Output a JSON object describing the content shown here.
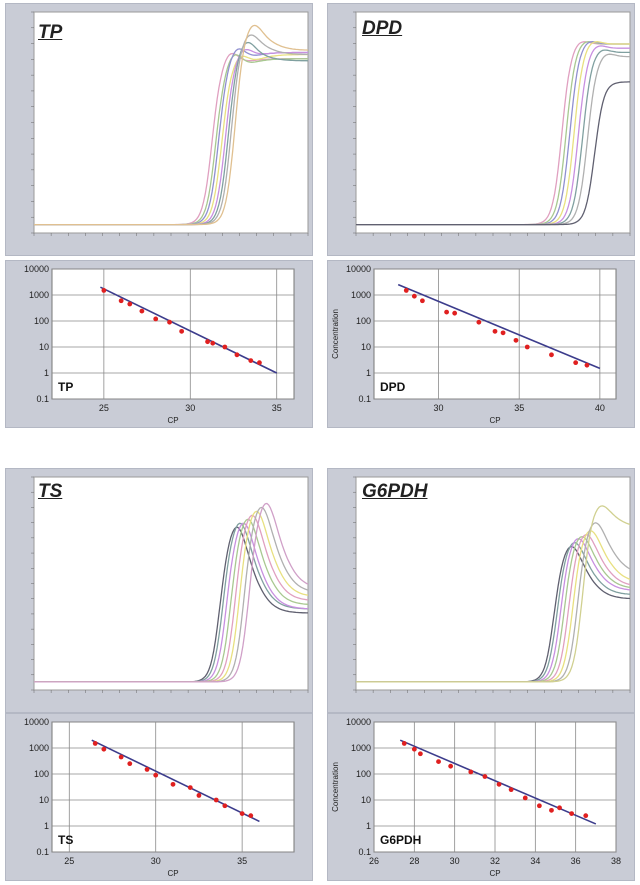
{
  "chart_data": [
    {
      "type": "line",
      "gene": "TP",
      "colors": [
        "#e0a0c0",
        "#a8c890",
        "#9090d0",
        "#e8e080",
        "#c890e0",
        "#80a0a0",
        "#b0b0b0",
        "#e0c090"
      ],
      "curves": [
        {
          "ct": 29.2,
          "plateau": 0.8,
          "peak": 0.06,
          "post": 0.03
        },
        {
          "ct": 29.8,
          "plateau": 0.78,
          "peak": 0.07,
          "post": 0.05
        },
        {
          "ct": 30.3,
          "plateau": 0.82,
          "peak": 0.06,
          "post": 0.04
        },
        {
          "ct": 30.8,
          "plateau": 0.79,
          "peak": 0.05,
          "post": 0.06
        },
        {
          "ct": 31.4,
          "plateau": 0.84,
          "peak": 0.04,
          "post": 0.02
        },
        {
          "ct": 31.9,
          "plateau": 0.88,
          "peak": 0.05,
          "post": -0.06
        },
        {
          "ct": 32.4,
          "plateau": 0.93,
          "peak": 0.04,
          "post": -0.08
        },
        {
          "ct": 33.0,
          "plateau": 0.97,
          "peak": 0.05,
          "post": -0.1
        }
      ],
      "xlim": [
        0,
        45
      ]
    },
    {
      "type": "line",
      "gene": "DPD",
      "colors": [
        "#e0a0c0",
        "#a8c890",
        "#9090d0",
        "#e8e080",
        "#c890e0",
        "#80a0a0",
        "#b0b0b0",
        "#606070"
      ],
      "curves": [
        {
          "ct": 33.8,
          "plateau": 0.9,
          "peak": 0.02,
          "post": 0.0
        },
        {
          "ct": 34.5,
          "plateau": 0.9,
          "peak": 0.02,
          "post": 0.0
        },
        {
          "ct": 35.1,
          "plateau": 0.9,
          "peak": 0.02,
          "post": 0.0
        },
        {
          "ct": 35.8,
          "plateau": 0.9,
          "peak": 0.02,
          "post": 0.0
        },
        {
          "ct": 36.5,
          "plateau": 0.88,
          "peak": 0.02,
          "post": 0.0
        },
        {
          "ct": 37.2,
          "plateau": 0.86,
          "peak": 0.02,
          "post": 0.0
        },
        {
          "ct": 38.0,
          "plateau": 0.84,
          "peak": 0.02,
          "post": 0.0
        },
        {
          "ct": 39.2,
          "plateau": 0.72,
          "peak": 0.0,
          "post": 0.0
        }
      ],
      "xlim": [
        0,
        45
      ]
    },
    {
      "type": "line",
      "gene": "TS",
      "colors": [
        "#606070",
        "#80a0a0",
        "#c890e0",
        "#a8c890",
        "#e0a0c0",
        "#e8e080",
        "#b0b0b0",
        "#d0a0c8"
      ],
      "curves": [
        {
          "ct": 30.5,
          "plateau": 0.78,
          "peak": 0.1,
          "post": -0.4
        },
        {
          "ct": 31.0,
          "plateau": 0.8,
          "peak": 0.1,
          "post": -0.4
        },
        {
          "ct": 31.6,
          "plateau": 0.8,
          "peak": 0.1,
          "post": -0.4
        },
        {
          "ct": 32.3,
          "plateau": 0.82,
          "peak": 0.1,
          "post": -0.4
        },
        {
          "ct": 33.0,
          "plateau": 0.84,
          "peak": 0.1,
          "post": -0.4
        },
        {
          "ct": 33.7,
          "plateau": 0.86,
          "peak": 0.1,
          "post": -0.4
        },
        {
          "ct": 34.5,
          "plateau": 0.88,
          "peak": 0.1,
          "post": -0.4
        },
        {
          "ct": 35.3,
          "plateau": 0.9,
          "peak": 0.1,
          "post": -0.4
        }
      ],
      "xlim": [
        0,
        45
      ]
    },
    {
      "type": "line",
      "gene": "G6PDH",
      "colors": [
        "#606070",
        "#80a0a0",
        "#c890e0",
        "#a8c890",
        "#e0a0c0",
        "#e8e080",
        "#b0b0b0",
        "#d0d090"
      ],
      "curves": [
        {
          "ct": 32.5,
          "plateau": 0.7,
          "peak": 0.06,
          "post": -0.25
        },
        {
          "ct": 33.0,
          "plateau": 0.72,
          "peak": 0.06,
          "post": -0.25
        },
        {
          "ct": 33.6,
          "plateau": 0.74,
          "peak": 0.06,
          "post": -0.25
        },
        {
          "ct": 34.2,
          "plateau": 0.75,
          "peak": 0.06,
          "post": -0.25
        },
        {
          "ct": 34.9,
          "plateau": 0.76,
          "peak": 0.06,
          "post": -0.25
        },
        {
          "ct": 35.6,
          "plateau": 0.78,
          "peak": 0.06,
          "post": -0.25
        },
        {
          "ct": 36.4,
          "plateau": 0.82,
          "peak": 0.06,
          "post": -0.25
        },
        {
          "ct": 37.2,
          "plateau": 0.9,
          "peak": 0.04,
          "post": -0.1
        }
      ],
      "xlim": [
        0,
        45
      ]
    },
    {
      "type": "scatter",
      "label": "TP",
      "xlabel": "CP",
      "ylabel": "",
      "xlim": [
        22,
        36
      ],
      "ylim_log": [
        0.1,
        10000
      ],
      "xticks": [
        25,
        30,
        35
      ],
      "yticks": [
        "0.1",
        "1",
        "10",
        "100",
        "1000",
        "10000"
      ],
      "points": [
        [
          25.0,
          1500
        ],
        [
          26.0,
          600
        ],
        [
          26.5,
          450
        ],
        [
          27.2,
          240
        ],
        [
          28.0,
          120
        ],
        [
          28.8,
          90
        ],
        [
          29.5,
          40
        ],
        [
          31.0,
          16
        ],
        [
          31.3,
          14
        ],
        [
          32.0,
          10
        ],
        [
          32.7,
          5
        ],
        [
          33.5,
          3
        ],
        [
          34.0,
          2.5
        ]
      ],
      "fit": [
        [
          24.8,
          2000
        ],
        [
          35.0,
          1
        ]
      ]
    },
    {
      "type": "scatter",
      "label": "DPD",
      "xlabel": "CP",
      "ylabel": "Concentration",
      "xlim": [
        26,
        41
      ],
      "ylim_log": [
        0.1,
        10000
      ],
      "xticks": [
        30,
        35,
        40
      ],
      "yticks": [
        "0.1",
        "1",
        "10",
        "100",
        "1000",
        "10000"
      ],
      "points": [
        [
          28.0,
          1500
        ],
        [
          28.5,
          900
        ],
        [
          29.0,
          600
        ],
        [
          30.5,
          220
        ],
        [
          31.0,
          200
        ],
        [
          32.5,
          90
        ],
        [
          33.5,
          40
        ],
        [
          34.0,
          35
        ],
        [
          34.8,
          18
        ],
        [
          35.5,
          10
        ],
        [
          37.0,
          5
        ],
        [
          38.5,
          2.5
        ],
        [
          39.2,
          2
        ]
      ],
      "fit": [
        [
          27.5,
          2500
        ],
        [
          40.0,
          1.5
        ]
      ]
    },
    {
      "type": "scatter",
      "label": "TS",
      "xlabel": "CP",
      "ylabel": "",
      "xlim": [
        24,
        38
      ],
      "ylim_log": [
        0.1,
        10000
      ],
      "xticks": [
        25,
        30,
        35
      ],
      "yticks": [
        "0.1",
        "1",
        "10",
        "100",
        "1000",
        "10000"
      ],
      "points": [
        [
          26.5,
          1500
        ],
        [
          27.0,
          900
        ],
        [
          28.0,
          450
        ],
        [
          28.5,
          250
        ],
        [
          29.5,
          150
        ],
        [
          30.0,
          90
        ],
        [
          31.0,
          40
        ],
        [
          32.0,
          30
        ],
        [
          32.5,
          15
        ],
        [
          33.5,
          10
        ],
        [
          34.0,
          6
        ],
        [
          35.0,
          3
        ],
        [
          35.5,
          2.5
        ]
      ],
      "fit": [
        [
          26.3,
          2000
        ],
        [
          36.0,
          1.5
        ]
      ]
    },
    {
      "type": "scatter",
      "label": "G6PDH",
      "xlabel": "CP",
      "ylabel": "Concentration",
      "xlim": [
        26,
        38
      ],
      "ylim_log": [
        0.1,
        10000
      ],
      "xticks": [
        26,
        28,
        30,
        32,
        34,
        36,
        38
      ],
      "yticks": [
        "0.1",
        "1",
        "10",
        "100",
        "1000",
        "10000"
      ],
      "points": [
        [
          27.5,
          1500
        ],
        [
          28.0,
          900
        ],
        [
          28.3,
          600
        ],
        [
          29.2,
          300
        ],
        [
          29.8,
          200
        ],
        [
          30.8,
          120
        ],
        [
          31.5,
          80
        ],
        [
          32.2,
          40
        ],
        [
          32.8,
          25
        ],
        [
          33.5,
          12
        ],
        [
          34.2,
          6
        ],
        [
          34.8,
          4
        ],
        [
          35.2,
          5
        ],
        [
          35.8,
          3
        ],
        [
          36.5,
          2.5
        ]
      ],
      "fit": [
        [
          27.3,
          2000
        ],
        [
          37.0,
          1.2
        ]
      ]
    }
  ],
  "colors": {
    "panel_bg": "#c9ccd6",
    "plot_bg": "#ffffff",
    "grid": "#8a8a8a",
    "fit_line": "#3c3c8c",
    "point": "#e02020"
  }
}
